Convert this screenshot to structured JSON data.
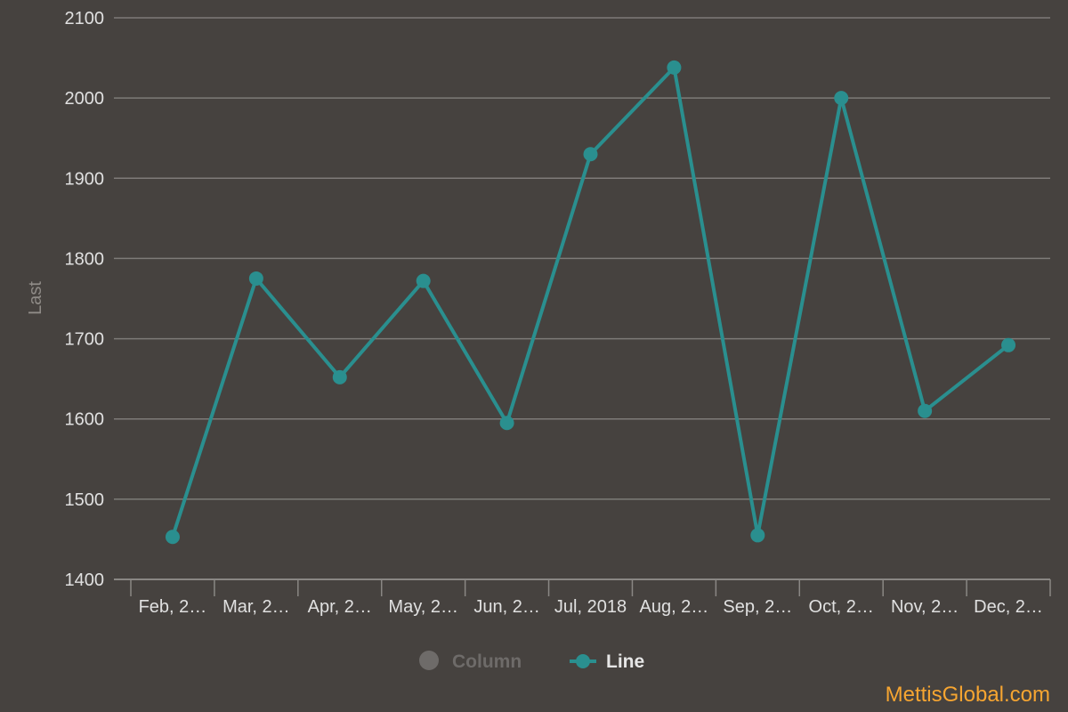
{
  "chart_data": {
    "type": "line",
    "title": "",
    "xlabel": "",
    "ylabel": "Last",
    "categories": [
      "Feb, 2…",
      "Mar, 2…",
      "Apr, 2…",
      "May, 2…",
      "Jun, 2…",
      "Jul, 2018",
      "Aug, 2…",
      "Sep, 2…",
      "Oct, 2…",
      "Nov, 2…",
      "Dec, 2…"
    ],
    "series": [
      {
        "name": "Line",
        "color": "#2a8f8f",
        "values": [
          1453,
          1775,
          1652,
          1772,
          1595,
          1930,
          2038,
          1455,
          2000,
          1610,
          1692
        ]
      }
    ],
    "ylim": [
      1400,
      2100
    ],
    "yticks": [
      1400,
      1500,
      1600,
      1700,
      1800,
      1900,
      2000,
      2100
    ],
    "grid": true,
    "legend_placement": "bottom-center",
    "legend": [
      {
        "label": "Column",
        "enabled": false,
        "color": "#6e6b69"
      },
      {
        "label": "Line",
        "enabled": true,
        "color": "#2a8f8f"
      }
    ]
  },
  "credits": {
    "text": "MettisGlobal.com",
    "color": "#f6a531"
  }
}
